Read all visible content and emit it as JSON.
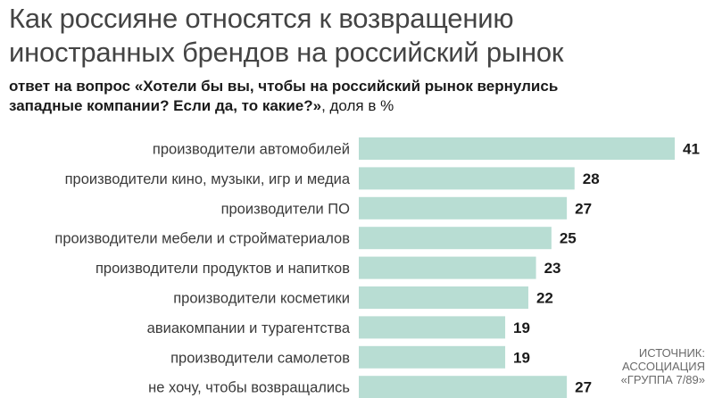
{
  "chart_data": {
    "type": "bar",
    "orientation": "horizontal",
    "title_lines": [
      "Как россияне относятся к возвращению",
      "иностранных брендов на российский рынок"
    ],
    "subtitle_lines": [
      "ответ на вопрос «Хотели бы вы, чтобы на российский рынок вернулись",
      "западные компании? Если да, то какие?»"
    ],
    "subtitle_suffix": ", доля в %",
    "categories": [
      "производители автомобилей",
      "производители кино, музыки, игр и медиа",
      "производители ПО",
      "производители мебели и стройматериалов",
      "производители продуктов и напитков",
      "производители косметики",
      "авиакомпании и турагентства",
      "производители самолетов",
      "не хочу, чтобы возвращались"
    ],
    "values": [
      41,
      28,
      27,
      25,
      23,
      22,
      19,
      19,
      27
    ],
    "xlim": [
      0,
      41
    ],
    "bar_color": "#b8ddd3",
    "grid": false,
    "legend": "none"
  },
  "source_lines": [
    "Источник:",
    "Ассоциация",
    "«Группа 7/89»"
  ]
}
